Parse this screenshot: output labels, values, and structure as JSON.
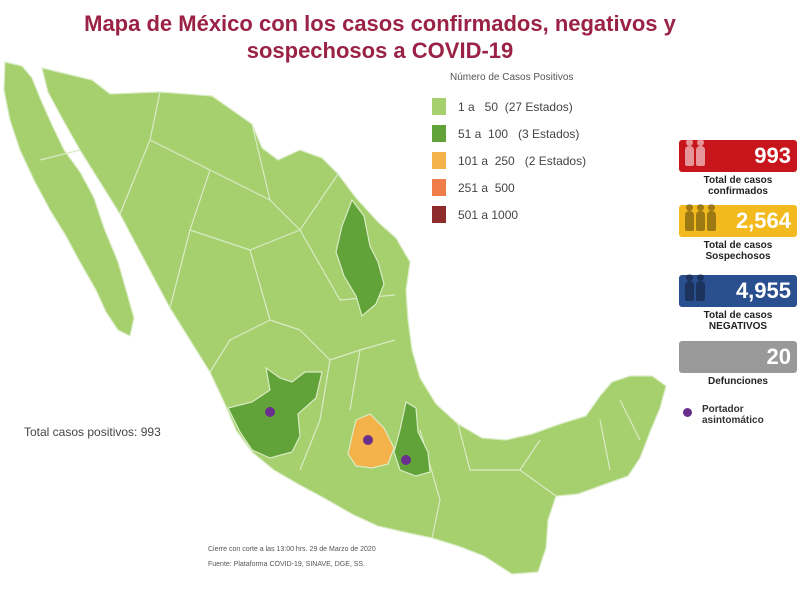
{
  "title": {
    "line1": "Mapa de México con los casos confirmados, negativos y",
    "line2": "sospechosos a COVID-19"
  },
  "legend": {
    "title": "Número de Casos Positivos",
    "items": [
      {
        "label": "1 a   50  (27 Estados)",
        "color": "#a6cf6e"
      },
      {
        "label": "51 a  100   (3 Estados)",
        "color": "#62a339"
      },
      {
        "label": "101 a  250   (2 Estados)",
        "color": "#f4b24a"
      },
      {
        "label": "251 a  500",
        "color": "#ef7d49"
      },
      {
        "label": "501 a 1000",
        "color": "#8d2c2a"
      }
    ]
  },
  "stats": [
    {
      "value": "993",
      "caption1": "Total de casos",
      "caption2": "confirmados",
      "color": "#c8151b"
    },
    {
      "value": "2,564",
      "caption1": "Total de casos",
      "caption2": "Sospechosos",
      "color": "#f2ba1f"
    },
    {
      "value": "4,955",
      "caption1": "Total de casos",
      "caption2": "NEGATIVOS",
      "color": "#2a4f8f"
    },
    {
      "value": "20",
      "caption1": "Defunciones",
      "caption2": "",
      "color": "#999999"
    }
  ],
  "portador": {
    "label1": "Portador",
    "label2": "asintomático",
    "color": "#6a2f8c"
  },
  "total_positivos": "Total casos positivos: 993",
  "footer": {
    "line1": "Cierre con corte a las 13:00 hrs. 29 de Marzo de 2020",
    "line2": "Fuente: Plataforma COVID-19, SINAVE, DGE, SS."
  },
  "map": {
    "land_color": "#a6cf6e",
    "border_color": "#d9ecc4",
    "states_51_100": [
      "Nuevo León",
      "Jalisco",
      "Puebla"
    ],
    "states_101_250": [
      "Ciudad de México",
      "Estado de México"
    ],
    "portador_locations": [
      "Jalisco",
      "Ciudad de México",
      "Puebla"
    ]
  }
}
